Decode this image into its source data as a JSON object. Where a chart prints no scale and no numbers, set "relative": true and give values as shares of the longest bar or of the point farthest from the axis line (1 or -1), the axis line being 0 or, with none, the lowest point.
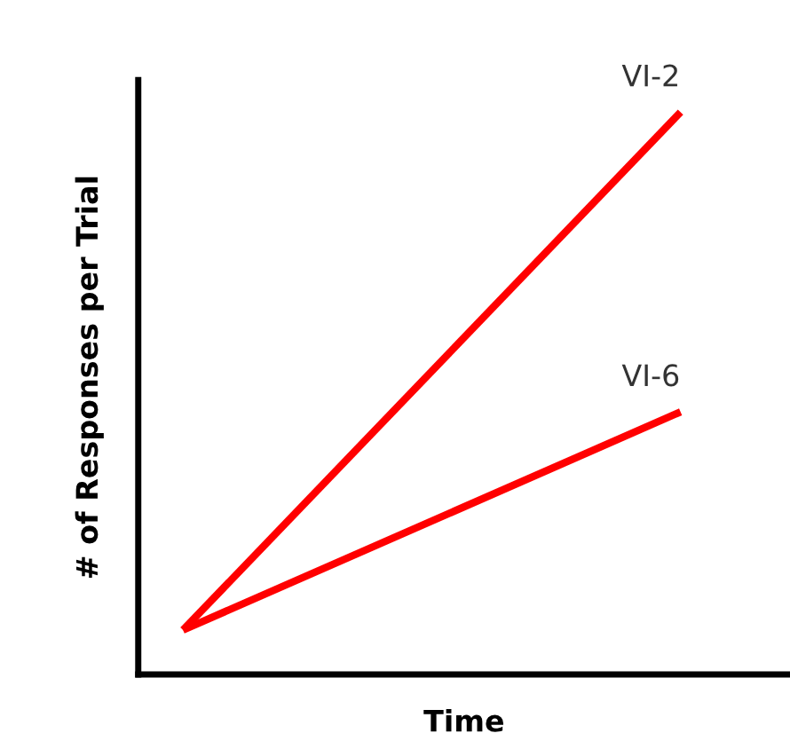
{
  "chart_data": {
    "type": "line",
    "relative": true,
    "xlabel": "Time",
    "ylabel": "# of Responses per Trial",
    "categories": [
      null,
      null
    ],
    "series": [
      {
        "name": "VI-2",
        "color": "#ff0000",
        "values": [
          0.079,
          1
        ]
      },
      {
        "name": "VI-6",
        "color": "#ff0000",
        "values": [
          0.079,
          0.467
        ]
      }
    ],
    "marker": "none",
    "line_style": "solid",
    "grid": false,
    "legend": false,
    "tick_labels": false
  }
}
